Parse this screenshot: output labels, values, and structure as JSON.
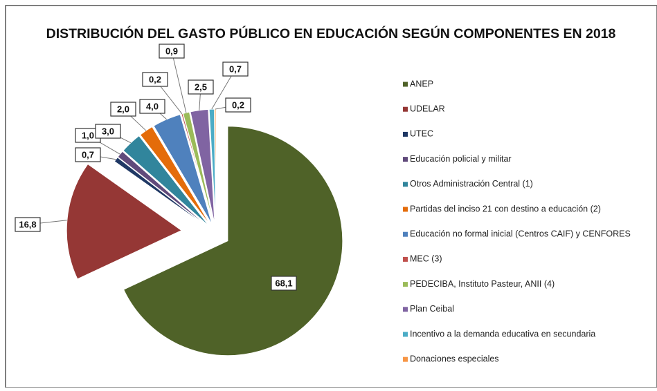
{
  "chart_data": {
    "type": "pie",
    "title": "DISTRIBUCIÓN DEL GASTO PÚBLICO EN EDUCACIÓN SEGÚN COMPONENTES EN 2018",
    "categories": [
      "ANEP",
      "UDELAR",
      "UTEC",
      "Educación policial y militar",
      "Otros Administración Central (1)",
      "Partidas del inciso 21 con destino a educación (2)",
      "Educación no formal inicial (Centros CAIF) y CENFORES",
      "MEC (3)",
      "PEDECIBA, Instituto Pasteur, ANII (4)",
      "Plan Ceibal",
      "Incentivo a la demanda educativa en secundaria",
      "Donaciones especiales"
    ],
    "values": [
      68.1,
      16.8,
      0.7,
      1.0,
      3.0,
      2.0,
      4.0,
      0.2,
      0.9,
      2.5,
      0.7,
      0.2
    ],
    "value_labels": [
      "68,1",
      "16,8",
      "0,7",
      "1,0",
      "3,0",
      "2,0",
      "4,0",
      "0,2",
      "0,9",
      "2,5",
      "0,7",
      "0,2"
    ],
    "colors": [
      "#4f6228",
      "#953735",
      "#1f3864",
      "#604a7b",
      "#31859c",
      "#e46c0a",
      "#4f81bd",
      "#c0504d",
      "#9bbb59",
      "#8064a2",
      "#4bacc6",
      "#f79646"
    ],
    "legend": "right"
  }
}
